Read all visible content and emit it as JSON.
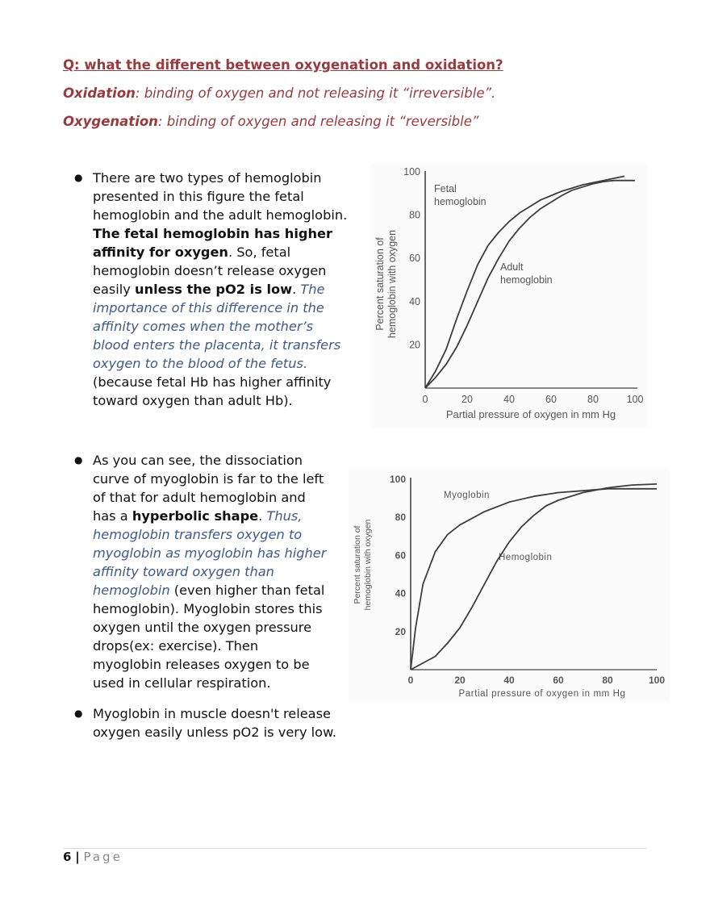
{
  "question": {
    "title": "Q: what the different between oxygenation and oxidation?",
    "definitions": [
      {
        "term": "Oxidation",
        "text": ": binding of oxygen and not releasing it “irreversible”."
      },
      {
        "term": "Oxygenation",
        "text": ": binding of oxygen and releasing it “reversible”"
      }
    ]
  },
  "bullets": {
    "b1": {
      "line1": "There are two types of hemoglobin",
      "line2": "presented in this figure the fetal",
      "line3": "hemoglobin and the adult hemoglobin.",
      "bold1": "The fetal hemoglobin has higher",
      "bold2": "affinity for oxygen",
      "after_bold2": ". So, fetal",
      "line6": "hemoglobin doesn’t release oxygen",
      "line7_pre": "easily ",
      "bold3": "unless the pO2 is low",
      "line7_post": ". ",
      "blue1": "The",
      "blue2": "importance of this difference in the",
      "blue3": "affinity comes when the mother’s",
      "blue4": "blood enters the placenta, it transfers",
      "blue5": "oxygen to the blood of the fetus.",
      "line13": "(because fetal Hb has higher affinity",
      "line14": "toward oxygen than adult Hb)."
    },
    "b2": {
      "line1": "As you can see, the dissociation",
      "line2": "curve of myoglobin is far to the left",
      "line3": "of that for adult hemoglobin and",
      "line4_pre": "has a ",
      "bold1": "hyperbolic shape",
      "line4_post": ". ",
      "blue1": "Thus,",
      "blue2": "hemoglobin transfers oxygen to",
      "blue3": "myoglobin as myoglobin has higher",
      "blue4": "affinity toward oxygen than",
      "blue5": "hemoglobin",
      "line8_post": " (even higher than fetal",
      "line9": "hemoglobin). Myoglobin stores this",
      "line10": "oxygen until the oxygen pressure",
      "line11": "drops(ex: exercise). Then",
      "line12": "myoglobin releases oxygen to be",
      "line13": "used in cellular respiration."
    },
    "b3": {
      "line1": "Myoglobin in muscle doesn't release",
      "line2": "oxygen easily unless pO2 is very low."
    }
  },
  "chart_data": [
    {
      "type": "line",
      "xlabel": "Partial pressure of oxygen in mm Hg",
      "ylabel_line1": "Percent saturation of",
      "ylabel_line2": "hemoglobin with oxygen",
      "xlim": [
        0,
        100
      ],
      "ylim": [
        0,
        100
      ],
      "xticks": [
        "0",
        "20",
        "40",
        "60",
        "80",
        "100"
      ],
      "yticks": [
        "20",
        "40",
        "60",
        "80",
        "100"
      ],
      "series": [
        {
          "name_line1": "Fetal",
          "name_line2": "hemoglobin",
          "x": [
            0,
            5,
            10,
            15,
            20,
            25,
            30,
            35,
            40,
            45,
            50,
            55,
            60,
            65,
            70,
            75,
            80,
            85,
            90,
            95
          ],
          "y": [
            0,
            8,
            18,
            32,
            45,
            57,
            66,
            72,
            77,
            81,
            84,
            87,
            89,
            91,
            92.5,
            94,
            95,
            96,
            97,
            98
          ]
        },
        {
          "name_line1": "Adult",
          "name_line2": "hemoglobin",
          "x": [
            0,
            5,
            10,
            15,
            20,
            25,
            30,
            35,
            40,
            45,
            50,
            55,
            60,
            65,
            70,
            75,
            80,
            85,
            90,
            95,
            100
          ],
          "y": [
            0,
            5,
            11,
            19,
            29,
            40,
            51,
            60,
            68,
            74,
            79,
            83,
            86,
            89,
            91.5,
            93,
            94.5,
            95.5,
            96,
            96,
            96
          ]
        }
      ]
    },
    {
      "type": "line",
      "xlabel": "Partial pressure of oxygen in mm Hg",
      "ylabel_line1": "Percent saturation of",
      "ylabel_line2": "hemoglobin with oxygen",
      "xlim": [
        0,
        100
      ],
      "ylim": [
        0,
        100
      ],
      "xticks": [
        "0",
        "20",
        "40",
        "60",
        "80",
        "100"
      ],
      "yticks": [
        "20",
        "40",
        "60",
        "80",
        "100"
      ],
      "series": [
        {
          "name": "Myoglobin",
          "x": [
            0,
            2,
            5,
            10,
            15,
            20,
            30,
            40,
            50,
            60,
            70,
            80,
            90,
            100
          ],
          "y": [
            0,
            22,
            45,
            62,
            71,
            76,
            83,
            88,
            91,
            93,
            94,
            95,
            95,
            95
          ]
        },
        {
          "name": "Hemoglobin",
          "x": [
            0,
            10,
            15,
            20,
            25,
            30,
            35,
            40,
            45,
            50,
            55,
            60,
            70,
            80,
            90,
            100
          ],
          "y": [
            0,
            7,
            14,
            22,
            33,
            45,
            57,
            67,
            75,
            81,
            86,
            89,
            93,
            95.5,
            97,
            97.5
          ]
        }
      ]
    }
  ],
  "footer": {
    "page_number": "6",
    "separator": "|",
    "label": "Page"
  }
}
